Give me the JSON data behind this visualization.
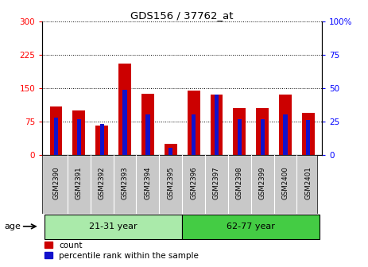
{
  "title": "GDS156 / 37762_at",
  "samples": [
    "GSM2390",
    "GSM2391",
    "GSM2392",
    "GSM2393",
    "GSM2394",
    "GSM2395",
    "GSM2396",
    "GSM2397",
    "GSM2398",
    "GSM2399",
    "GSM2400",
    "GSM2401"
  ],
  "count": [
    108,
    100,
    65,
    205,
    138,
    25,
    145,
    135,
    105,
    105,
    135,
    95
  ],
  "percentile": [
    28,
    27,
    23,
    49,
    30,
    5,
    30,
    45,
    27,
    27,
    30,
    26
  ],
  "ylim_left": [
    0,
    300
  ],
  "ylim_right": [
    0,
    100
  ],
  "yticks_left": [
    0,
    75,
    150,
    225,
    300
  ],
  "yticks_right": [
    0,
    25,
    50,
    75,
    100
  ],
  "bar_color_red": "#CC0000",
  "bar_color_blue": "#1111CC",
  "red_bar_width": 0.55,
  "blue_bar_width": 0.18,
  "groups": [
    {
      "label": "21-31 year",
      "start": 0,
      "end": 6,
      "color": "#AAEAAA"
    },
    {
      "label": "62-77 year",
      "start": 6,
      "end": 12,
      "color": "#44CC44"
    }
  ],
  "age_label": "age",
  "legend_count": "count",
  "legend_percentile": "percentile rank within the sample",
  "grid_color": "black",
  "label_bg_color": "#C8C8C8"
}
